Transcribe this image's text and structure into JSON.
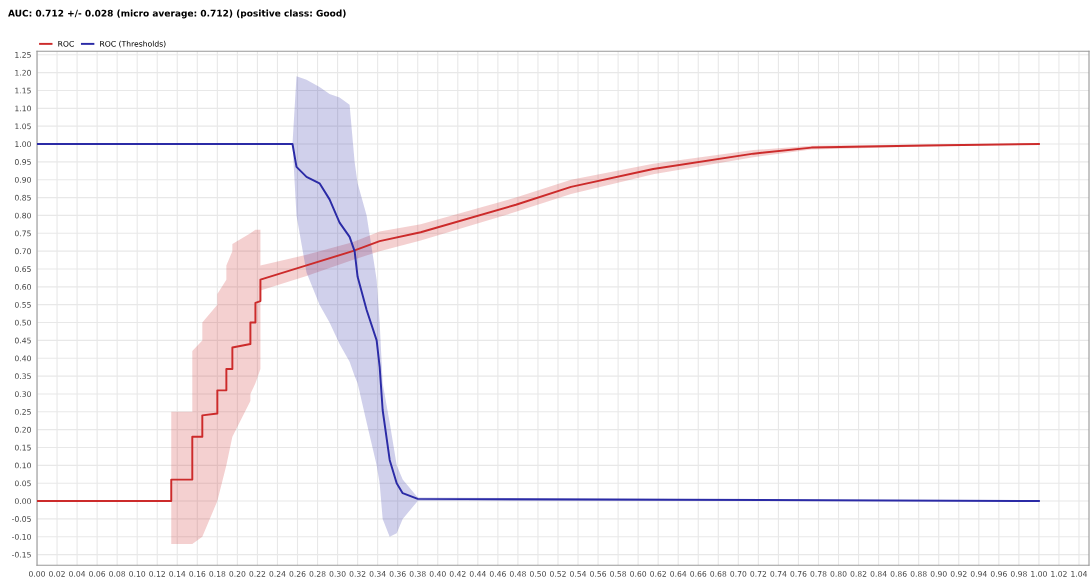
{
  "chart_data": {
    "type": "line",
    "title": "AUC: 0.712 +/- 0.028 (micro average: 0.712) (positive class: Good)",
    "series": [
      {
        "name": "ROC",
        "color": "#cc2b2b",
        "x": [
          0,
          0.134,
          0.134,
          0.155,
          0.155,
          0.165,
          0.165,
          0.18,
          0.18,
          0.189,
          0.189,
          0.195,
          0.195,
          0.213,
          0.213,
          0.218,
          0.218,
          0.223,
          0.223,
          0.269,
          0.315,
          0.342,
          0.383,
          0.478,
          0.533,
          0.615,
          0.715,
          0.773,
          0.887,
          1.0
        ],
        "values": [
          0,
          0,
          0.06,
          0.06,
          0.18,
          0.18,
          0.24,
          0.245,
          0.31,
          0.31,
          0.37,
          0.37,
          0.43,
          0.44,
          0.5,
          0.5,
          0.555,
          0.56,
          0.62,
          0.66,
          0.7,
          0.728,
          0.753,
          0.83,
          0.88,
          0.93,
          0.973,
          0.99,
          0.996,
          1.0
        ],
        "lower": [
          0,
          0,
          -0.12,
          -0.12,
          -0.12,
          -0.1,
          -0.1,
          0.0,
          0.0,
          0.1,
          0.1,
          0.18,
          0.18,
          0.28,
          0.3,
          0.33,
          0.33,
          0.37,
          0.59,
          0.63,
          0.675,
          0.7,
          0.73,
          0.81,
          0.86,
          0.915,
          0.963,
          0.985,
          0.993,
          1.0
        ],
        "upper": [
          0,
          0,
          0.25,
          0.25,
          0.42,
          0.45,
          0.5,
          0.55,
          0.58,
          0.62,
          0.66,
          0.7,
          0.72,
          0.75,
          0.75,
          0.76,
          0.76,
          0.76,
          0.66,
          0.69,
          0.725,
          0.755,
          0.775,
          0.85,
          0.9,
          0.945,
          0.983,
          0.995,
          0.999,
          1.0
        ]
      },
      {
        "name": "ROC (Thresholds)",
        "color": "#2b2ba6",
        "x": [
          0,
          0.255,
          0.259,
          0.269,
          0.282,
          0.292,
          0.302,
          0.312,
          0.317,
          0.32,
          0.329,
          0.339,
          0.342,
          0.345,
          0.352,
          0.359,
          0.365,
          0.38,
          1.0
        ],
        "values": [
          1,
          1,
          0.936,
          0.908,
          0.89,
          0.845,
          0.78,
          0.74,
          0.7,
          0.628,
          0.535,
          0.45,
          0.376,
          0.255,
          0.115,
          0.05,
          0.022,
          0.006,
          0
        ],
        "lower": [
          1,
          1,
          0.8,
          0.64,
          0.55,
          0.5,
          0.44,
          0.39,
          0.35,
          0.33,
          0.22,
          0.1,
          0.05,
          -0.05,
          -0.1,
          -0.09,
          -0.05,
          0.0,
          0
        ],
        "upper": [
          1,
          1,
          1.19,
          1.18,
          1.16,
          1.14,
          1.13,
          1.11,
          0.95,
          0.89,
          0.8,
          0.62,
          0.5,
          0.33,
          0.22,
          0.1,
          0.06,
          0.01,
          0
        ]
      }
    ],
    "xlim": [
      0,
      1.05
    ],
    "ylim": [
      -0.18,
      1.26
    ],
    "xticks": [
      {
        "value": 0,
        "label": "0.00"
      },
      {
        "value": 0.02,
        "label": "0.02"
      },
      {
        "value": 0.04,
        "label": "0.04"
      },
      {
        "value": 0.06,
        "label": "0.06"
      },
      {
        "value": 0.08,
        "label": "0.08"
      },
      {
        "value": 0.1,
        "label": "0.10"
      },
      {
        "value": 0.12,
        "label": "0.12"
      },
      {
        "value": 0.14,
        "label": "0.14"
      },
      {
        "value": 0.16,
        "label": "0.16"
      },
      {
        "value": 0.18,
        "label": "0.18"
      },
      {
        "value": 0.2,
        "label": "0.20"
      },
      {
        "value": 0.22,
        "label": "0.22"
      },
      {
        "value": 0.24,
        "label": "0.24"
      },
      {
        "value": 0.26,
        "label": "0.26"
      },
      {
        "value": 0.28,
        "label": "0.28"
      },
      {
        "value": 0.3,
        "label": "0.30"
      },
      {
        "value": 0.32,
        "label": "0.32"
      },
      {
        "value": 0.34,
        "label": "0.34"
      },
      {
        "value": 0.36,
        "label": "0.36"
      },
      {
        "value": 0.38,
        "label": "0.38"
      },
      {
        "value": 0.4,
        "label": "0.40"
      },
      {
        "value": 0.42,
        "label": "0.42"
      },
      {
        "value": 0.44,
        "label": "0.44"
      },
      {
        "value": 0.46,
        "label": "0.46"
      },
      {
        "value": 0.48,
        "label": "0.48"
      },
      {
        "value": 0.5,
        "label": "0.50"
      },
      {
        "value": 0.52,
        "label": "0.52"
      },
      {
        "value": 0.54,
        "label": "0.54"
      },
      {
        "value": 0.56,
        "label": "0.56"
      },
      {
        "value": 0.58,
        "label": "0.58"
      },
      {
        "value": 0.6,
        "label": "0.60"
      },
      {
        "value": 0.62,
        "label": "0.62"
      },
      {
        "value": 0.64,
        "label": "0.64"
      },
      {
        "value": 0.66,
        "label": "0.66"
      },
      {
        "value": 0.68,
        "label": "0.68"
      },
      {
        "value": 0.7,
        "label": "0.70"
      },
      {
        "value": 0.72,
        "label": "0.72"
      },
      {
        "value": 0.74,
        "label": "0.74"
      },
      {
        "value": 0.76,
        "label": "0.76"
      },
      {
        "value": 0.78,
        "label": "0.78"
      },
      {
        "value": 0.8,
        "label": "0.80"
      },
      {
        "value": 0.82,
        "label": "0.82"
      },
      {
        "value": 0.84,
        "label": "0.84"
      },
      {
        "value": 0.86,
        "label": "0.86"
      },
      {
        "value": 0.88,
        "label": "0.88"
      },
      {
        "value": 0.9,
        "label": "0.90"
      },
      {
        "value": 0.92,
        "label": "0.92"
      },
      {
        "value": 0.94,
        "label": "0.94"
      },
      {
        "value": 0.96,
        "label": "0.96"
      },
      {
        "value": 0.98,
        "label": "0.98"
      },
      {
        "value": 1.0,
        "label": "1.00"
      },
      {
        "value": 1.02,
        "label": "1.02"
      },
      {
        "value": 1.04,
        "label": "1.04"
      }
    ],
    "yticks": [
      {
        "value": -0.15,
        "label": "-0.15"
      },
      {
        "value": -0.1,
        "label": "-0.10"
      },
      {
        "value": -0.05,
        "label": "-0.05"
      },
      {
        "value": 0,
        "label": "0.00"
      },
      {
        "value": 0.05,
        "label": "0.05"
      },
      {
        "value": 0.1,
        "label": "0.10"
      },
      {
        "value": 0.15,
        "label": "0.15"
      },
      {
        "value": 0.2,
        "label": "0.20"
      },
      {
        "value": 0.25,
        "label": "0.25"
      },
      {
        "value": 0.3,
        "label": "0.30"
      },
      {
        "value": 0.35,
        "label": "0.35"
      },
      {
        "value": 0.4,
        "label": "0.40"
      },
      {
        "value": 0.45,
        "label": "0.45"
      },
      {
        "value": 0.5,
        "label": "0.50"
      },
      {
        "value": 0.55,
        "label": "0.55"
      },
      {
        "value": 0.6,
        "label": "0.60"
      },
      {
        "value": 0.65,
        "label": "0.65"
      },
      {
        "value": 0.7,
        "label": "0.70"
      },
      {
        "value": 0.75,
        "label": "0.75"
      },
      {
        "value": 0.8,
        "label": "0.80"
      },
      {
        "value": 0.85,
        "label": "0.85"
      },
      {
        "value": 0.9,
        "label": "0.90"
      },
      {
        "value": 0.95,
        "label": "0.95"
      },
      {
        "value": 1.0,
        "label": "1.00"
      },
      {
        "value": 1.05,
        "label": "1.05"
      },
      {
        "value": 1.1,
        "label": "1.10"
      },
      {
        "value": 1.15,
        "label": "1.15"
      },
      {
        "value": 1.2,
        "label": "1.20"
      },
      {
        "value": 1.25,
        "label": "1.25"
      }
    ],
    "grid": true,
    "legend": "top left",
    "marker": "none",
    "line_style": "solid"
  }
}
